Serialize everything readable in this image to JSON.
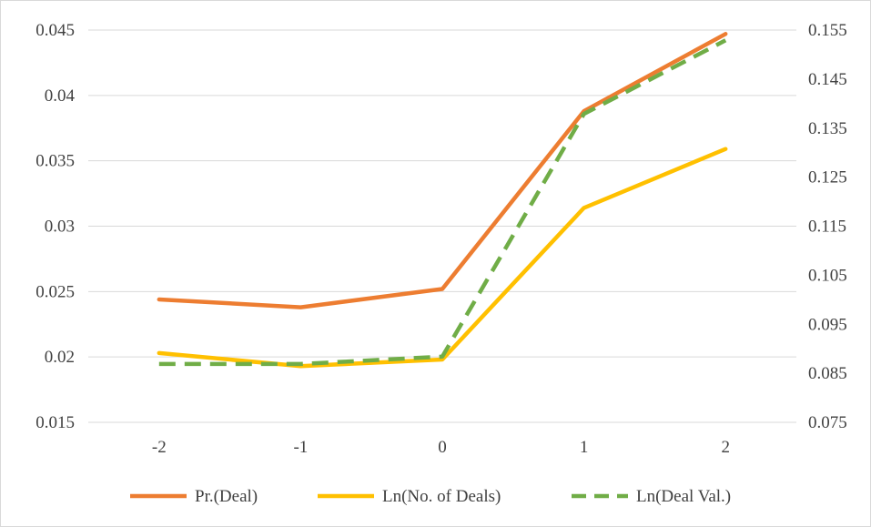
{
  "chart_data": {
    "type": "line",
    "title": "",
    "xlabel": "",
    "ylabel": "",
    "categories": [
      "-2",
      "-1",
      "0",
      "1",
      "2"
    ],
    "ylim_left": [
      0.015,
      0.045
    ],
    "yticks_left": [
      "0.015",
      "0.02",
      "0.025",
      "0.03",
      "0.035",
      "0.04",
      "0.045"
    ],
    "ylim_right": [
      0.075,
      0.155
    ],
    "yticks_right": [
      "0.075",
      "0.085",
      "0.095",
      "0.105",
      "0.115",
      "0.125",
      "0.135",
      "0.145",
      "0.155"
    ],
    "grid": true,
    "legend_position": "bottom",
    "series": [
      {
        "name": "Pr.(Deal)",
        "axis": "left",
        "values": [
          0.0244,
          0.0238,
          0.0252,
          0.0388,
          0.0447
        ],
        "color": "#ED7D31",
        "dash": "solid"
      },
      {
        "name": "Ln(No. of Deals)",
        "axis": "left",
        "values": [
          0.0203,
          0.0193,
          0.0198,
          0.0314,
          0.0359
        ],
        "color": "#FFC000",
        "dash": "solid"
      },
      {
        "name": "Ln(Deal Val.)",
        "axis": "right",
        "values": [
          0.0869,
          0.0869,
          0.0884,
          0.1379,
          0.1529
        ],
        "color": "#70AD47",
        "dash": "dashed"
      }
    ]
  }
}
